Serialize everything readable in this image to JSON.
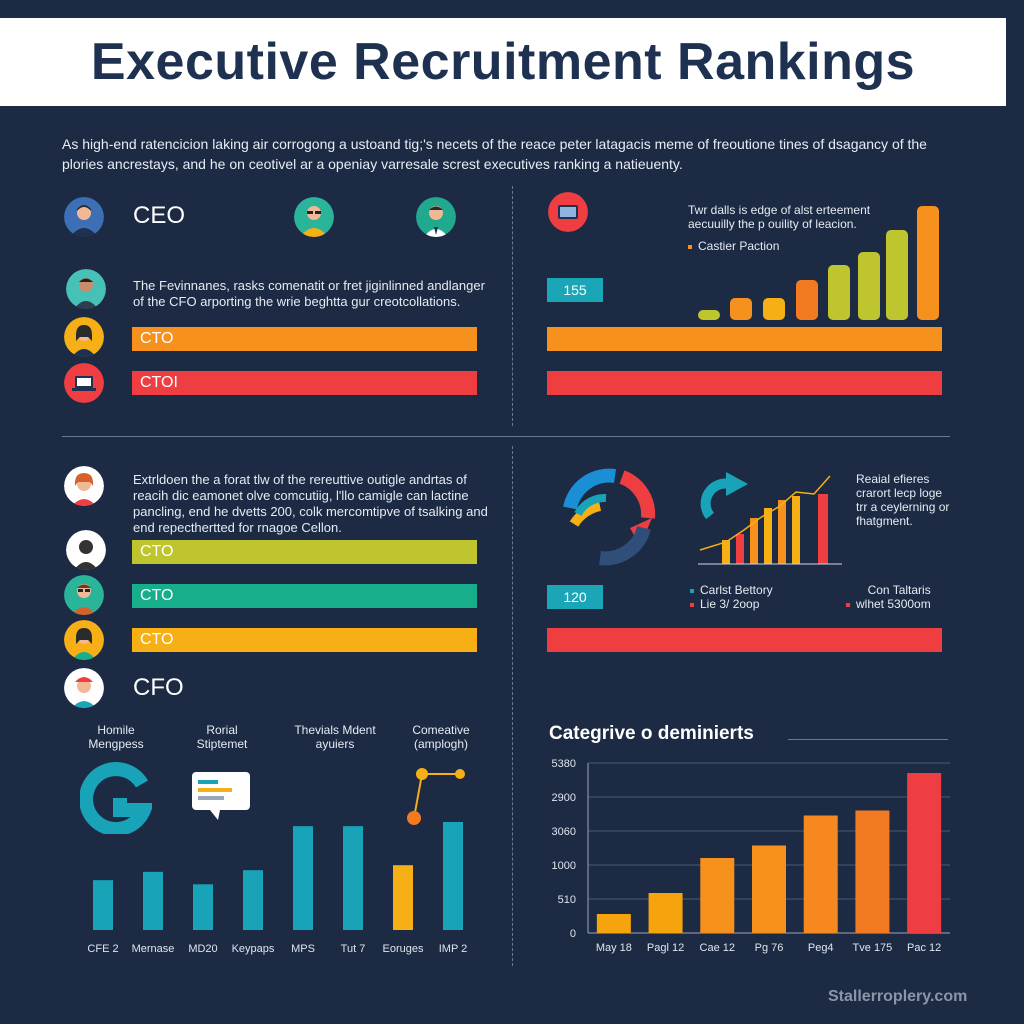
{
  "header": {
    "title": "Executive Recruitment Rankings"
  },
  "intro": "As high-end ratencicion laking air corrogong a ustoand tig;'s necets of the reace peter latagacis meme of freoutione tines of dsagancy of the plories ancrestays, and he on ceotivel ar a openiay varresale screst executives ranking a natieuenty.",
  "top_left": {
    "role_ceo": "CEO",
    "paragraph": "The Fevinnanes, rasks comenatit or fret jiginlinned andlanger of the CFO arporting the wrie beghtta gur creotcollations.",
    "bars": [
      {
        "label": "CTO",
        "color": "#f7911d"
      },
      {
        "label": "CTOI",
        "color": "#ef3e42"
      }
    ]
  },
  "top_right": {
    "note": "Twr dalls is edge of alst erteement aecuuilly the p ouility of leacion.",
    "legend": "Castier Paction",
    "badge": "155",
    "bar_colors": [
      "#f7911d",
      "#ef3e42"
    ]
  },
  "mid_left": {
    "paragraph": "Extrldoen the a forat tlw of the rereuttive outigle andrtas of reacih dic eamonet olve comcutiig, l'llo camigle can lactine pancling, end he dvetts 200, colk mercomtipve of tsalking and end repecthertted for rnagoe Cellon.",
    "bars": [
      {
        "label": "CTO",
        "color": "#bfc52e"
      },
      {
        "label": "CTO",
        "color": "#16ae8b"
      },
      {
        "label": "CTO",
        "color": "#f6b016"
      }
    ],
    "role_cfo": "CFO"
  },
  "mid_right": {
    "note": "Reaial efieres crarort lecp loge trr a ceylerning or fhatgment.",
    "legend_left": [
      "Carlst Bettory",
      "Lie 3/ 2oop"
    ],
    "legend_right": [
      "Con Taltaris",
      "wlhet 5300om"
    ],
    "badge": "120",
    "bar_color": "#ef3e42"
  },
  "bottom_left": {
    "headers": [
      "Homile Mengpess",
      "Rorial Stiptemet",
      "Thevials Mdent ayuiers",
      "Comeative (amplogh)"
    ],
    "chart_data": {
      "type": "bar",
      "categories": [
        "CFE 2",
        "Mernase",
        "MD20",
        "Keypaps",
        "MPS",
        "Tut 7",
        "Eoruges",
        "IMP 2"
      ],
      "values": [
        60,
        70,
        55,
        72,
        125,
        125,
        78,
        130
      ],
      "colors": [
        "#19a3b8",
        "#19a3b8",
        "#19a3b8",
        "#19a3b8",
        "#19a3b8",
        "#19a3b8",
        "#f6b016",
        "#19a3b8"
      ]
    }
  },
  "bottom_right": {
    "chart_data": {
      "type": "bar",
      "title": "Categrive o deminierts",
      "categories": [
        "May 18",
        "Pagl 12",
        "Cae 12",
        "Pg 76",
        "Peg4",
        "Tve 175",
        "Pac 12"
      ],
      "values": [
        380,
        800,
        1500,
        1750,
        2350,
        2450,
        3200
      ],
      "yticks": [
        "0",
        "510",
        "1000",
        "3060",
        "2900",
        "5380"
      ],
      "colors": [
        "#f5a40e",
        "#f5a40e",
        "#f7911d",
        "#f7911d",
        "#f7871f",
        "#f47a22",
        "#ef3e42"
      ]
    }
  },
  "footer": {
    "watermark": "Stallerroplery.com"
  }
}
